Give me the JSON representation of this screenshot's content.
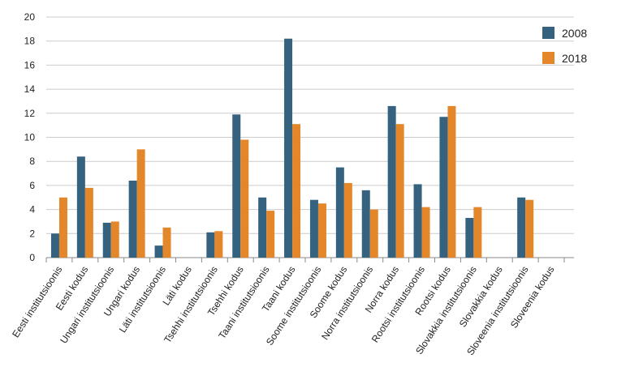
{
  "chart_data": {
    "type": "bar",
    "categories": [
      "Eesti institutsioonis",
      "Eesti kodus",
      "Ungari institutsioonis",
      "Ungari kodus",
      "Läti institutsioonis",
      "Läti kodus",
      "Tsehhi institutsioonis",
      "Tsehhi kodus",
      "Taani institutsioonis",
      "Taani kodus",
      "Soome institutsioonis",
      "Soome kodus",
      "Norra institutsioonis",
      "Norra kodus",
      "Rootsi institutsioonis",
      "Rootsi kodus",
      "Slovakkia institutsioonis",
      "Slovakkia kodus",
      "Sloveenia institutsioonis",
      "Sloveenia kodus"
    ],
    "series": [
      {
        "name": "2008",
        "color": "#34627f",
        "values": [
          2.0,
          8.4,
          2.9,
          6.4,
          1.0,
          null,
          2.1,
          11.9,
          5.0,
          18.2,
          4.8,
          7.5,
          5.6,
          12.6,
          6.1,
          11.7,
          3.3,
          null,
          5.0,
          null
        ]
      },
      {
        "name": "2018",
        "color": "#e4862a",
        "values": [
          5.0,
          5.8,
          3.0,
          9.0,
          2.5,
          null,
          2.2,
          9.8,
          3.9,
          11.1,
          4.5,
          6.2,
          4.0,
          11.1,
          4.2,
          12.6,
          4.2,
          null,
          4.8,
          null
        ]
      }
    ],
    "ylim": [
      0,
      20
    ],
    "yticks": [
      0,
      2,
      4,
      6,
      8,
      10,
      12,
      14,
      16,
      18,
      20
    ],
    "grid": true,
    "legend": "right"
  }
}
